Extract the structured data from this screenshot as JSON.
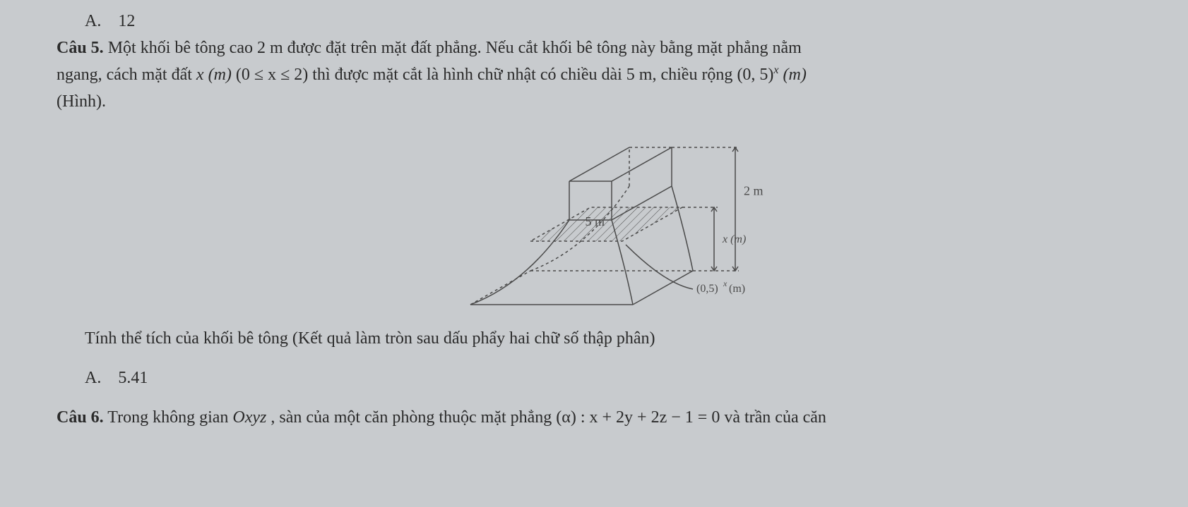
{
  "q5": {
    "prev_answer_label": "A.",
    "prev_answer_value": "12",
    "label": "Câu 5.",
    "text_part1": " Một khối bê tông cao 2 m được đặt trên mặt đất phẳng. Nếu cắt khối bê tông này bằng mặt phẳng nằm",
    "line2_a": "ngang, cách mặt đất ",
    "math1_x": "x",
    "math1_m": "(m)",
    "math1_cond": "(0 ≤ x ≤ 2)",
    "line2_b": " thì được mặt cắt là hình chữ nhật có chiều dài 5 m, chiều rộng ",
    "math2_base": "(0, 5)",
    "math2_exp": "x",
    "math2_unit": " (m)",
    "line3": "(Hình).",
    "caption": "Tính thể tích của khối bê tông (Kết quả làm tròn sau dấu phẩy hai chữ số thập phân)",
    "answer_label": "A.",
    "answer_value": "5.41"
  },
  "q6": {
    "label": "Câu 6.",
    "text_a": " Trong không gian ",
    "math_oxyz": "Oxyz",
    "text_b": " , sàn của một căn phòng thuộc mặt phẳng ",
    "math_plane": "(α) : x + 2y + 2z − 1 = 0",
    "text_c": "  và trần của căn"
  },
  "figure": {
    "label_5m": "5 m",
    "label_2m": "2 m",
    "label_xm": "x (m)",
    "label_05xm_base": "(0,5)",
    "label_05xm_exp": "x",
    "label_05xm_unit": " (m)",
    "stroke": "#4a4a4a",
    "dash": "4 4",
    "font_family": "Times New Roman",
    "font_size_main": 18,
    "font_size_small": 16
  }
}
